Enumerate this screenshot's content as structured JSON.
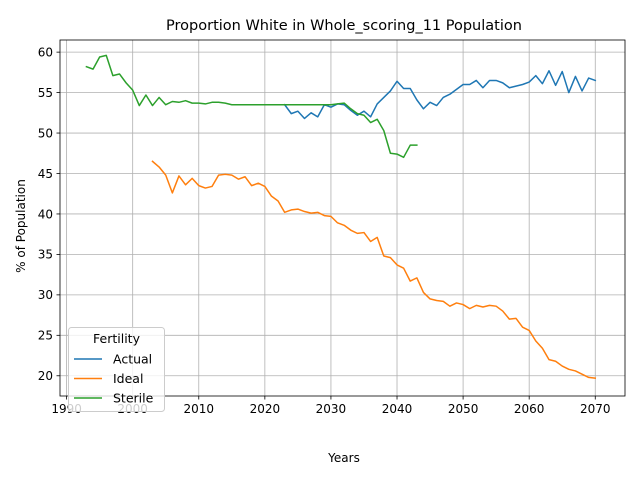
{
  "chart_data": {
    "type": "line",
    "title": "Proportion White in Whole_scoring_11 Population",
    "xlabel": "Years",
    "ylabel": "% of Population",
    "xlim": [
      1989,
      2074.5
    ],
    "ylim": [
      17.5,
      61.5
    ],
    "xticks": [
      1990,
      2000,
      2010,
      2020,
      2030,
      2040,
      2050,
      2060,
      2070
    ],
    "yticks": [
      20,
      25,
      30,
      35,
      40,
      45,
      50,
      55,
      60
    ],
    "grid": true,
    "legend": {
      "title": "Fertility",
      "placement": "lower-left"
    },
    "series": [
      {
        "name": "Actual",
        "color": "#1f77b4",
        "x": [
          2023,
          2024,
          2025,
          2026,
          2027,
          2028,
          2029,
          2030,
          2031,
          2032,
          2033,
          2034,
          2035,
          2036,
          2037,
          2038,
          2039,
          2040,
          2041,
          2042,
          2043,
          2044,
          2045,
          2046,
          2047,
          2048,
          2049,
          2050,
          2051,
          2052,
          2053,
          2054,
          2055,
          2056,
          2057,
          2058,
          2059,
          2060,
          2061,
          2062,
          2063,
          2064,
          2065,
          2066,
          2067,
          2068,
          2069,
          2070
        ],
        "y": [
          53.5,
          52.4,
          52.7,
          51.8,
          52.5,
          52.0,
          53.5,
          53.2,
          53.6,
          53.5,
          52.8,
          52.2,
          52.7,
          52.0,
          53.6,
          54.4,
          55.2,
          56.4,
          55.5,
          55.5,
          54.1,
          53.0,
          53.8,
          53.4,
          54.4,
          54.8,
          55.4,
          56.0,
          56.0,
          56.5,
          55.6,
          56.5,
          56.5,
          56.2,
          55.6,
          55.8,
          56.0,
          56.3,
          57.1,
          56.1,
          57.7,
          55.9,
          57.6,
          55.0,
          57.0,
          55.2,
          56.8,
          56.5
        ]
      },
      {
        "name": "Ideal",
        "color": "#ff7f0e",
        "x": [
          2003,
          2004,
          2005,
          2006,
          2007,
          2008,
          2009,
          2010,
          2011,
          2012,
          2013,
          2014,
          2015,
          2016,
          2017,
          2018,
          2019,
          2020,
          2021,
          2022,
          2023,
          2024,
          2025,
          2026,
          2027,
          2028,
          2029,
          2030,
          2031,
          2032,
          2033,
          2034,
          2035,
          2036,
          2037,
          2038,
          2039,
          2040,
          2041,
          2042,
          2043,
          2044,
          2045,
          2046,
          2047,
          2048,
          2049,
          2050,
          2051,
          2052,
          2053,
          2054,
          2055,
          2056,
          2057,
          2058,
          2059,
          2060,
          2061,
          2062,
          2063,
          2064,
          2065,
          2066,
          2067,
          2068,
          2069,
          2070
        ],
        "y": [
          46.5,
          45.8,
          44.8,
          42.6,
          44.7,
          43.6,
          44.4,
          43.5,
          43.2,
          43.4,
          44.8,
          44.9,
          44.8,
          44.3,
          44.6,
          43.5,
          43.8,
          43.4,
          42.2,
          41.6,
          40.2,
          40.5,
          40.6,
          40.3,
          40.1,
          40.2,
          39.8,
          39.7,
          38.9,
          38.6,
          38.0,
          37.6,
          37.7,
          36.6,
          37.1,
          34.8,
          34.6,
          33.7,
          33.3,
          31.7,
          32.1,
          30.3,
          29.5,
          29.3,
          29.2,
          28.6,
          29.0,
          28.8,
          28.3,
          28.7,
          28.5,
          28.7,
          28.6,
          28.0,
          27.0,
          27.1,
          26.0,
          25.6,
          24.3,
          23.4,
          22.0,
          21.8,
          21.2,
          20.8,
          20.6,
          20.2,
          19.8,
          19.7
        ]
      },
      {
        "name": "Sterile",
        "color": "#2ca02c",
        "x": [
          1993,
          1994,
          1995,
          1996,
          1997,
          1998,
          1999,
          2000,
          2001,
          2002,
          2003,
          2004,
          2005,
          2006,
          2007,
          2008,
          2009,
          2010,
          2011,
          2012,
          2013,
          2014,
          2015,
          2016,
          2017,
          2018,
          2019,
          2020,
          2021,
          2022,
          2023,
          2024,
          2025,
          2026,
          2027,
          2028,
          2029,
          2030,
          2031,
          2032,
          2033,
          2034,
          2035,
          2036,
          2037,
          2038,
          2039,
          2040,
          2041,
          2042,
          2043
        ],
        "y": [
          58.2,
          57.9,
          59.4,
          59.6,
          57.1,
          57.3,
          56.2,
          55.3,
          53.4,
          54.7,
          53.4,
          54.4,
          53.5,
          53.9,
          53.8,
          54.0,
          53.7,
          53.7,
          53.6,
          53.8,
          53.8,
          53.7,
          53.5,
          53.5,
          53.5,
          53.5,
          53.5,
          53.5,
          53.5,
          53.5,
          53.5,
          53.5,
          53.5,
          53.5,
          53.5,
          53.5,
          53.5,
          53.5,
          53.6,
          53.7,
          53.0,
          52.4,
          52.2,
          51.3,
          51.7,
          50.3,
          47.5,
          47.4,
          47.0,
          48.5,
          48.5
        ]
      }
    ]
  }
}
